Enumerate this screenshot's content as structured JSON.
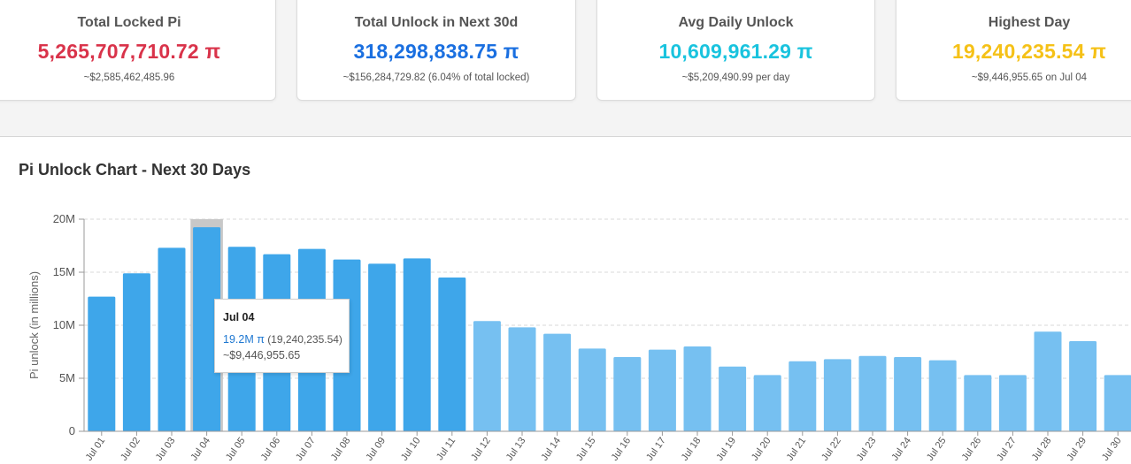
{
  "cards": [
    {
      "title": "Total Locked Pi",
      "value": "5,265,707,710.72 π",
      "sub": "~$2,585,462,485.96",
      "color": "#d9334a"
    },
    {
      "title": "Total Unlock in Next 30d",
      "value": "318,298,838.75 π",
      "sub": "~$156,284,729.82 (6.04% of total locked)",
      "color": "#1a6fe0"
    },
    {
      "title": "Avg Daily Unlock",
      "value": "10,609,961.29 π",
      "sub": "~$5,209,490.99 per day",
      "color": "#19c3de"
    },
    {
      "title": "Highest Day",
      "value": "19,240,235.54 π",
      "sub": "~$9,446,955.65 on Jul 04",
      "color": "#f5c117"
    }
  ],
  "chart_title": "Pi Unlock Chart - Next 30 Days",
  "tooltip": {
    "date": "Jul 04",
    "value_short": "19.2M π",
    "value_full": "(19,240,235.54)",
    "usd": "~$9,446,955.65"
  },
  "chart_data": {
    "type": "bar",
    "title": "Pi Unlock Chart - Next 30 Days",
    "xlabel": "",
    "ylabel": "Pi unlock (in millions)",
    "ylim": [
      0,
      20000000
    ],
    "yticks": [
      "0",
      "5M",
      "10M",
      "15M",
      "20M"
    ],
    "grid": true,
    "highlighted_category": "Jul 04",
    "categories": [
      "Jul 01",
      "Jul 02",
      "Jul 03",
      "Jul 04",
      "Jul 05",
      "Jul 06",
      "Jul 07",
      "Jul 08",
      "Jul 09",
      "Jul 10",
      "Jul 11",
      "Jul 12",
      "Jul 13",
      "Jul 14",
      "Jul 15",
      "Jul 16",
      "Jul 17",
      "Jul 18",
      "Jul 19",
      "Jul 20",
      "Jul 21",
      "Jul 22",
      "Jul 23",
      "Jul 24",
      "Jul 25",
      "Jul 26",
      "Jul 27",
      "Jul 28",
      "Jul 29",
      "Jul 30"
    ],
    "values": [
      12700000,
      14900000,
      17300000,
      19240235.54,
      17400000,
      16700000,
      17200000,
      16200000,
      15800000,
      16300000,
      14500000,
      10400000,
      9800000,
      9200000,
      7800000,
      7000000,
      7700000,
      8000000,
      6100000,
      5300000,
      6600000,
      6800000,
      7100000,
      7000000,
      6700000,
      5300000,
      5300000,
      9400000,
      8500000,
      5300000
    ],
    "colors": {
      "dark": "#3ea6ea",
      "light": "#76c0f1",
      "highlight_bg": "#c8c8c8",
      "grid": "#d8d8d8",
      "axis": "#9a9a9a"
    }
  }
}
